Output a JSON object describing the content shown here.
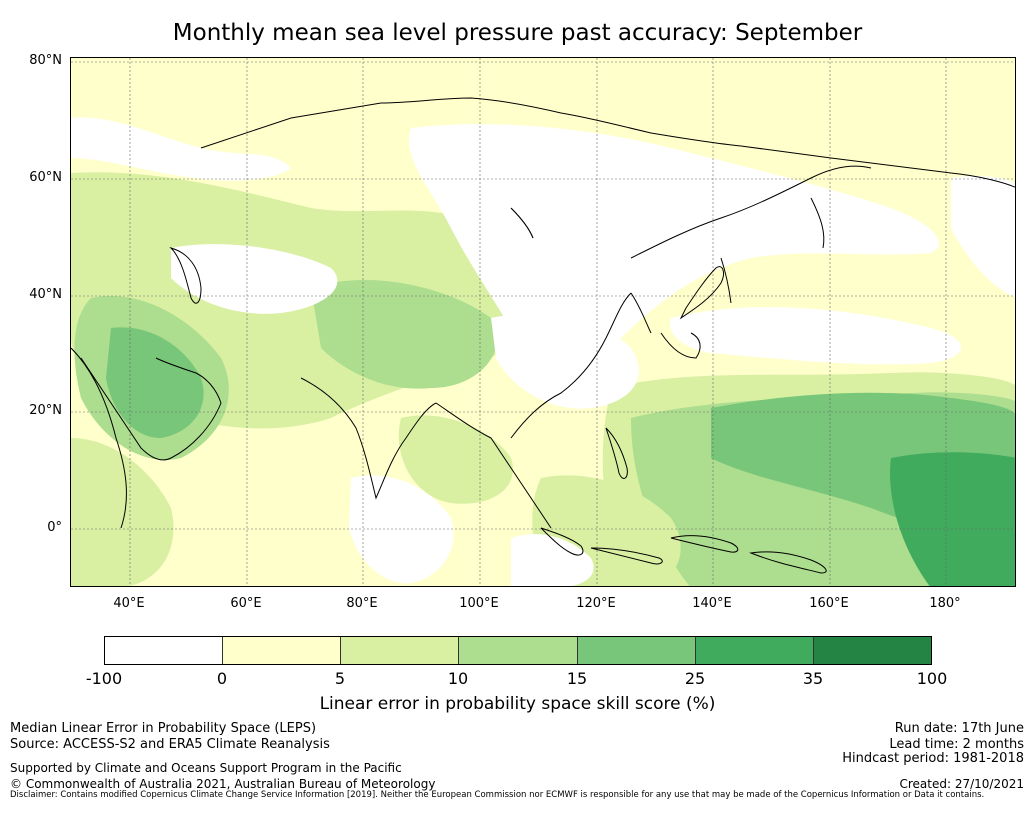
{
  "title": "Monthly mean sea level pressure past accuracy: September",
  "map": {
    "lat_labels": [
      "80°N",
      "60°N",
      "40°N",
      "20°N",
      "0°"
    ],
    "lon_labels": [
      "40°E",
      "60°E",
      "80°E",
      "100°E",
      "120°E",
      "140°E",
      "160°E",
      "180°"
    ],
    "colors": {
      "c1": "#ffffff",
      "c2": "#ffffcc",
      "c3": "#d9f0a3",
      "c4": "#addd8e",
      "c5": "#78c679",
      "c6": "#41ab5d",
      "c7": "#238443",
      "coast": "#000000"
    }
  },
  "colorbar": {
    "colors": [
      "#ffffff",
      "#ffffcc",
      "#d9f0a3",
      "#addd8e",
      "#78c679",
      "#41ab5d",
      "#238443"
    ],
    "ticks": [
      "-100",
      "0",
      "5",
      "10",
      "15",
      "25",
      "35",
      "100"
    ],
    "label": "Linear error in probability space skill score (%)"
  },
  "info": {
    "method": "Median Linear Error in Probability Space (LEPS)",
    "source": "Source: ACCESS-S2 and ERA5 Climate Reanalysis",
    "support": "Supported by Climate and Oceans Support Program in the Pacific",
    "copyright": "© Commonwealth of Australia 2021, Australian Bureau of Meteorology",
    "run_date": "Run date: 17th June",
    "lead_time": "Lead time: 2 months",
    "hindcast": "Hindcast period: 1981-2018",
    "created": "Created: 27/10/2021",
    "disclaimer": "Disclaimer: Contains modified Copernicus Climate Change Service Information [2019]. Neither the European Commission nor ECMWF is responsible for any use that may be made of the Copernicus Information or Data it contains."
  }
}
